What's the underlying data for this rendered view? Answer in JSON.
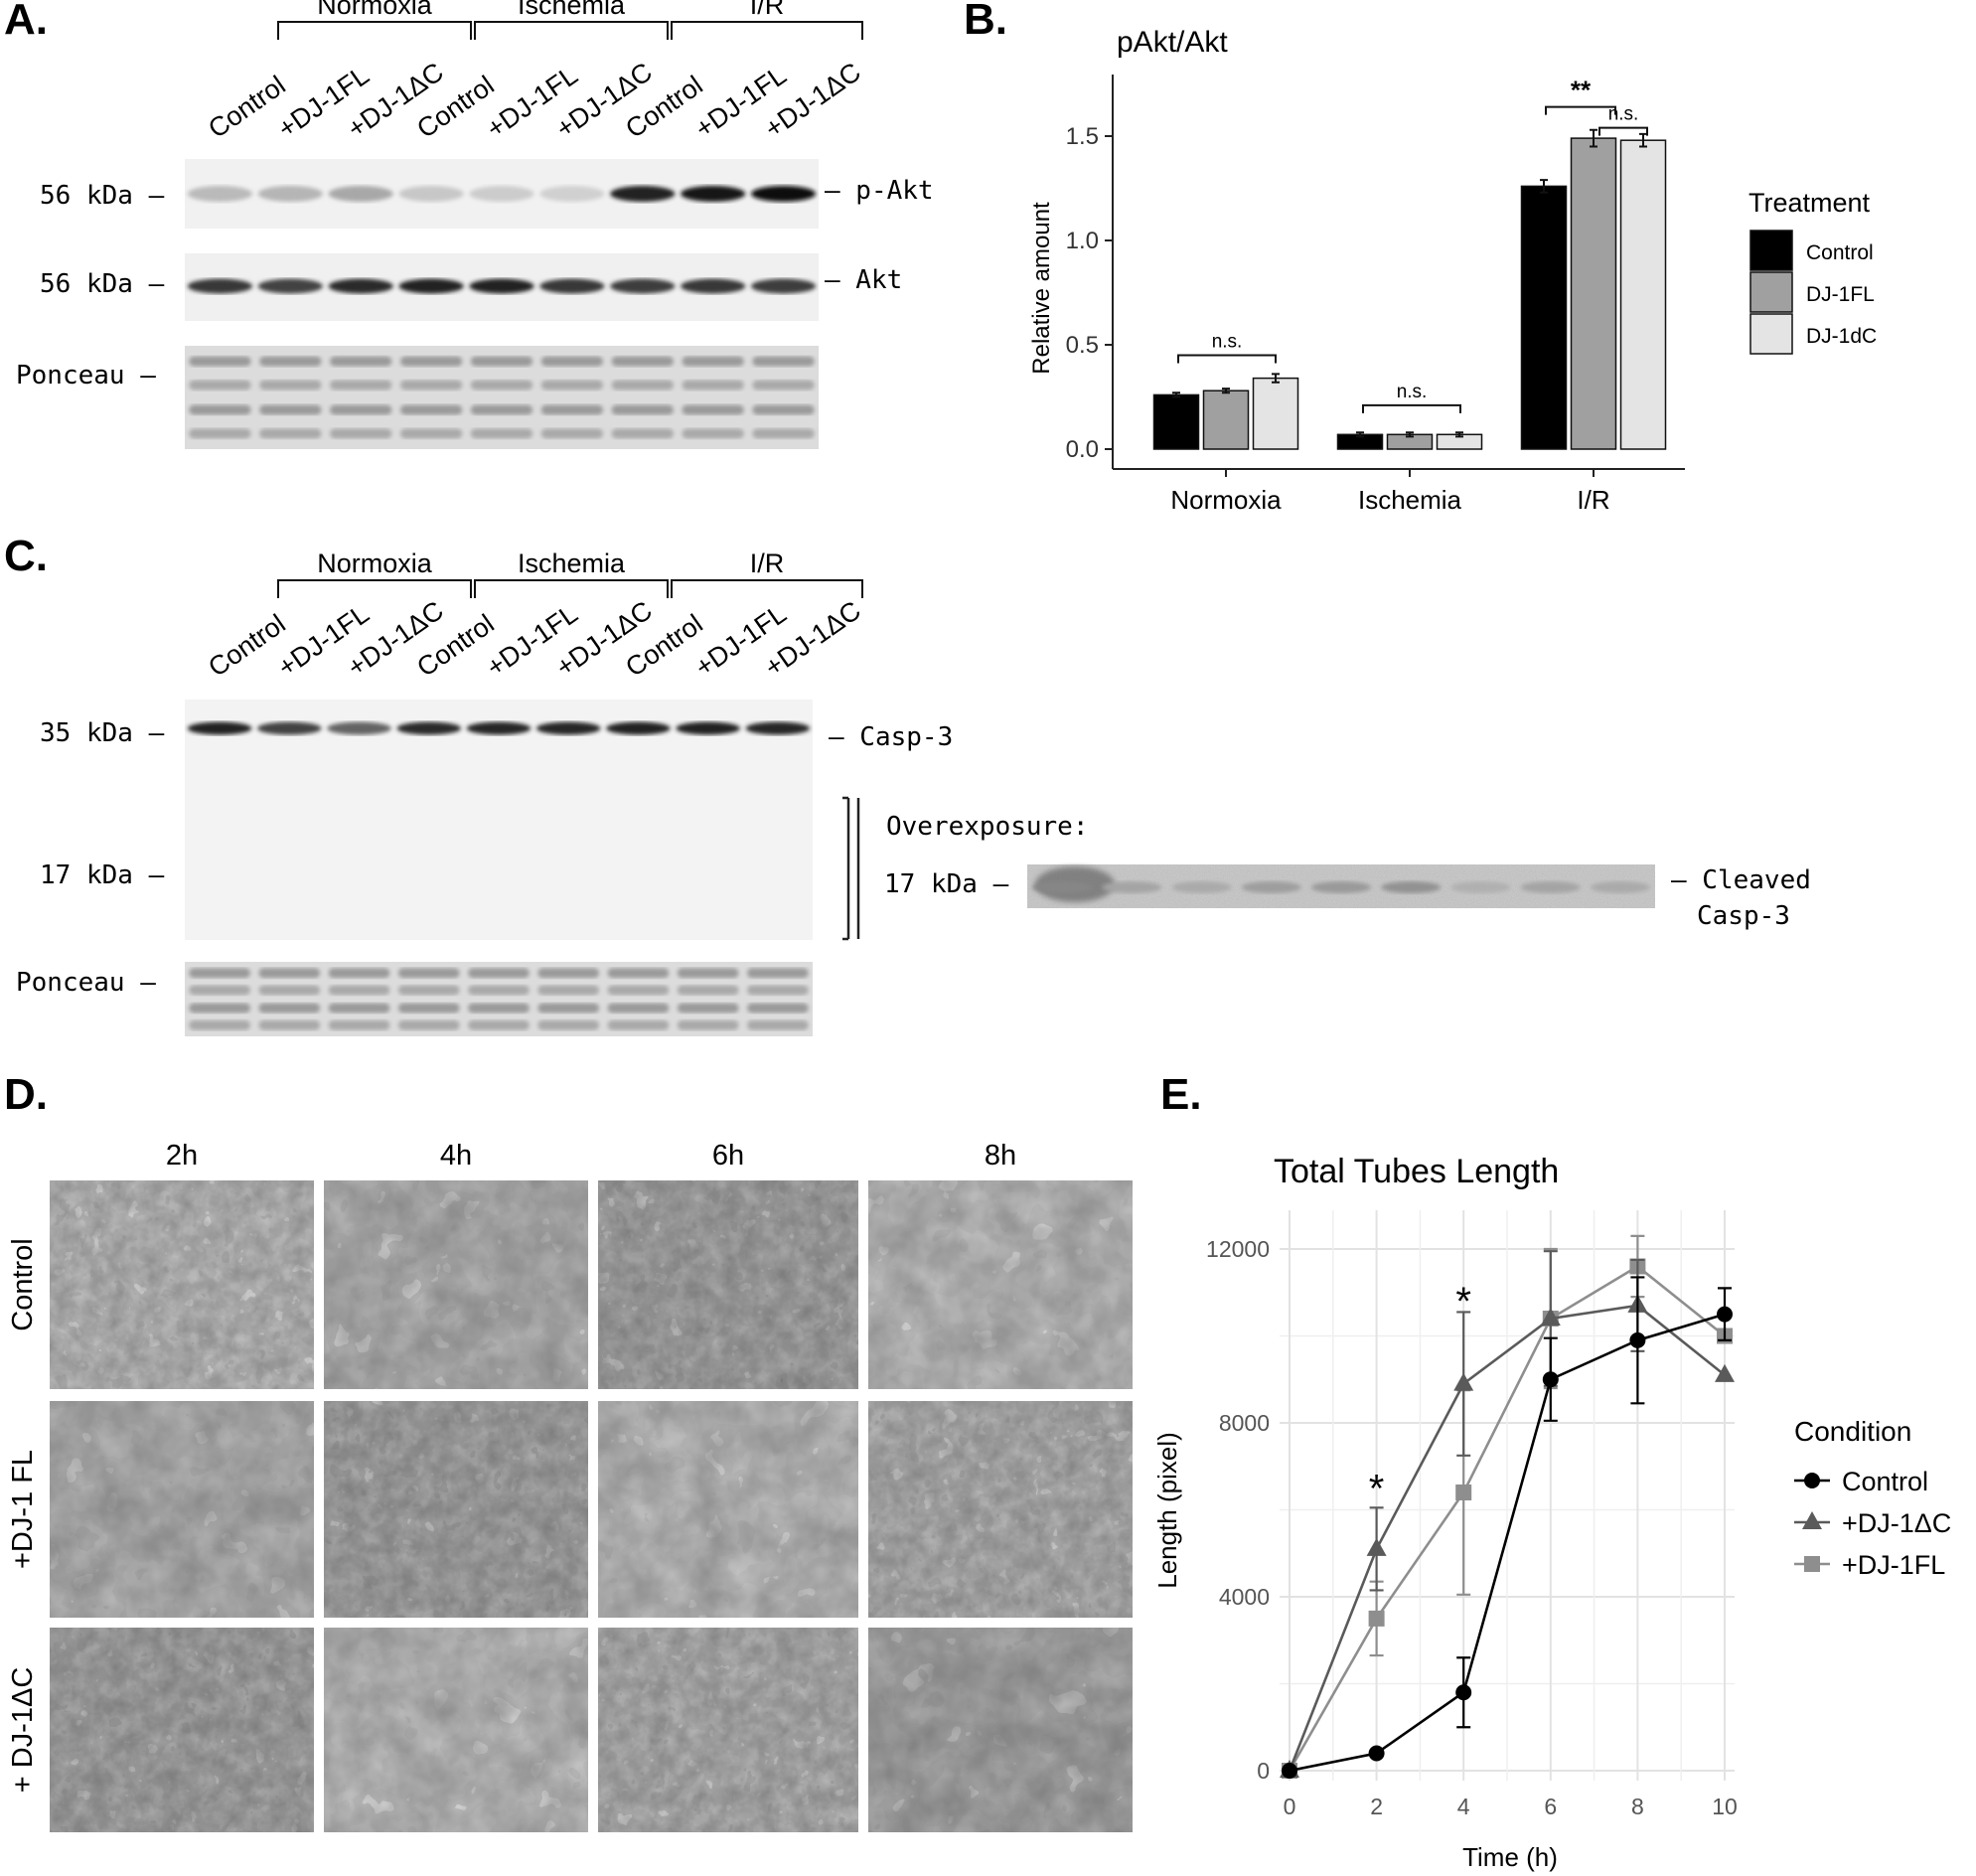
{
  "panels": {
    "A": "A.",
    "B": "B.",
    "C": "C.",
    "D": "D.",
    "E": "E."
  },
  "groups": [
    "Normoxia",
    "Ischemia",
    "I/R"
  ],
  "lanes": [
    "Control",
    "+DJ-1FL",
    "+DJ-1ΔC",
    "Control",
    "+DJ-1FL",
    "+DJ-1ΔC",
    "Control",
    "+DJ-1FL",
    "+DJ-1ΔC"
  ],
  "blotA": {
    "left_labels": [
      "56 kDa –",
      "56 kDa –",
      "Ponceau –"
    ],
    "right_labels": [
      "– p-Akt",
      "– Akt"
    ],
    "pakt_intensity": [
      0.22,
      0.24,
      0.3,
      0.16,
      0.14,
      0.12,
      0.9,
      0.95,
      0.98
    ],
    "akt_intensity": [
      0.8,
      0.75,
      0.85,
      0.9,
      0.9,
      0.8,
      0.78,
      0.8,
      0.78
    ]
  },
  "blotC": {
    "left_labels": [
      "35 kDa –",
      "17 kDa –",
      "Ponceau –"
    ],
    "right_label": "– Casp-3",
    "overexposure_label": "Overexposure:",
    "overexposure_kda": "17 kDa –",
    "cleaved_label_1": "– Cleaved",
    "cleaved_label_2": "Casp-3",
    "casp3_intensity": [
      0.9,
      0.75,
      0.6,
      0.85,
      0.88,
      0.88,
      0.9,
      0.9,
      0.88
    ]
  },
  "micrographs": {
    "times": [
      "2h",
      "4h",
      "6h",
      "8h"
    ],
    "rows": [
      "Control",
      "+DJ-1 FL",
      "+ DJ-1ΔC"
    ]
  },
  "chart_data": [
    {
      "type": "bar",
      "title": "pAkt/Akt",
      "ylabel": "Relative amount",
      "xlabel": "",
      "categories": [
        "Normoxia",
        "Ischemia",
        "I/R"
      ],
      "yticks": [
        "0.0",
        "0.5",
        "1.0",
        "1.5"
      ],
      "ylim": [
        0,
        1.8
      ],
      "legend_title": "Treatment",
      "legend_position": "right",
      "series": [
        {
          "name": "Control",
          "color": "#000000",
          "values": [
            0.26,
            0.07,
            1.26
          ],
          "errors": [
            0.01,
            0.01,
            0.03
          ]
        },
        {
          "name": "DJ-1FL",
          "color": "#a0a0a0",
          "values": [
            0.28,
            0.07,
            1.49
          ],
          "errors": [
            0.01,
            0.01,
            0.04
          ]
        },
        {
          "name": "DJ-1dC",
          "color": "#e4e4e4",
          "values": [
            0.34,
            0.07,
            1.48
          ],
          "errors": [
            0.02,
            0.01,
            0.03
          ]
        }
      ],
      "annotations": [
        "n.s.",
        "n.s.",
        "**",
        "n.s."
      ]
    },
    {
      "type": "line",
      "title": "Total Tubes Length",
      "xlabel": "Time (h)",
      "ylabel": "Length (pixel)",
      "x": [
        0,
        2,
        4,
        6,
        8,
        10
      ],
      "xticks": [
        "0",
        "2",
        "4",
        "6",
        "8",
        "10"
      ],
      "yticks": [
        "0",
        "4000",
        "8000",
        "12000"
      ],
      "xlim": [
        0,
        10
      ],
      "ylim": [
        0,
        13500
      ],
      "grid": true,
      "legend_title": "Condition",
      "legend_position": "right",
      "series": [
        {
          "name": "Control",
          "marker": "circle",
          "color": "#000000",
          "values": [
            0,
            400,
            1800,
            9000,
            9900,
            10500
          ],
          "errors": [
            0,
            0,
            800,
            950,
            1450,
            600
          ]
        },
        {
          "name": "+DJ-1ΔC",
          "marker": "triangle",
          "color": "#5a5a5a",
          "values": [
            0,
            5100,
            8900,
            10400,
            10700,
            9100
          ],
          "errors": [
            0,
            950,
            1650,
            1550,
            1050,
            0
          ]
        },
        {
          "name": "+DJ-1FL",
          "marker": "square",
          "color": "#8e8e8e",
          "values": [
            0,
            3500,
            6400,
            10400,
            11600,
            10000
          ],
          "errors": [
            0,
            850,
            2350,
            1600,
            700,
            0
          ]
        }
      ],
      "annotations": [
        "*",
        "*"
      ]
    }
  ]
}
